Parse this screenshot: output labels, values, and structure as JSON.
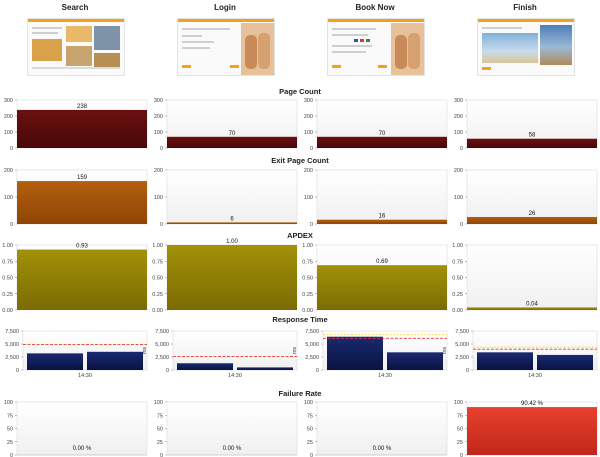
{
  "columns": [
    {
      "title": "Search"
    },
    {
      "title": "Login"
    },
    {
      "title": "Book Now"
    },
    {
      "title": "Finish"
    }
  ],
  "sections": [
    {
      "title": "Page Count"
    },
    {
      "title": "Exit Page Count"
    },
    {
      "title": "APDEX"
    },
    {
      "title": "Response Time"
    },
    {
      "title": "Failure Rate"
    }
  ],
  "colors": {
    "page_count": "#5a0d0d",
    "exit_page_count": "#a8560a",
    "apdex": "#8f7f06",
    "response_time": "#101b5a",
    "failure_rate": "#d63222",
    "threshold_red": "#e03a2a",
    "threshold_yellow": "#e8df40"
  },
  "chart_data": [
    {
      "type": "bar",
      "title": "Page Count",
      "categories": [
        "Search",
        "Login",
        "Book Now",
        "Finish"
      ],
      "values": [
        238,
        70,
        70,
        58
      ],
      "data_labels": [
        "238",
        "70",
        "70",
        "58"
      ],
      "ylim": [
        0,
        300
      ],
      "yticks": [
        "0",
        "100",
        "200",
        "300"
      ]
    },
    {
      "type": "bar",
      "title": "Exit Page Count",
      "categories": [
        "Search",
        "Login",
        "Book Now",
        "Finish"
      ],
      "values": [
        159,
        6,
        16,
        26
      ],
      "data_labels": [
        "159",
        "6",
        "16",
        "26"
      ],
      "ylim": [
        0,
        200
      ],
      "yticks": [
        "0",
        "100",
        "200"
      ]
    },
    {
      "type": "bar",
      "title": "APDEX",
      "categories": [
        "Search",
        "Login",
        "Book Now",
        "Finish"
      ],
      "values": [
        0.93,
        1.0,
        0.69,
        0.04
      ],
      "data_labels": [
        "0.93",
        "1.00",
        "0.69",
        "0.04"
      ],
      "ylim": [
        0,
        1.0
      ],
      "yticks": [
        "0.00",
        "0.25",
        "0.50",
        "0.75",
        "1.00"
      ]
    },
    {
      "type": "bar",
      "title": "Response Time",
      "ylabel": "ms",
      "xtick": "14:30",
      "ylim": [
        0,
        7500
      ],
      "yticks": [
        "0",
        "2,500",
        "5,000",
        "7,500"
      ],
      "panels": [
        {
          "category": "Search",
          "values": [
            3200,
            3500
          ],
          "red_threshold": 4900,
          "yellow_threshold": null
        },
        {
          "category": "Login",
          "values": [
            1300,
            500
          ],
          "red_threshold": 2600,
          "yellow_threshold": null
        },
        {
          "category": "Book Now",
          "values": [
            6400,
            3400
          ],
          "red_threshold": 6100,
          "yellow_threshold": 6800
        },
        {
          "category": "Finish",
          "values": [
            3400,
            2900
          ],
          "red_threshold": 4000,
          "yellow_threshold": 4400
        }
      ]
    },
    {
      "type": "bar",
      "title": "Failure Rate",
      "categories": [
        "Search",
        "Login",
        "Book Now",
        "Finish"
      ],
      "values": [
        0.0,
        0.0,
        0.0,
        90.42
      ],
      "data_labels": [
        "0.00 %",
        "0.00 %",
        "0.00 %",
        "90.42 %"
      ],
      "ylim": [
        0,
        100
      ],
      "yticks": [
        "0",
        "25",
        "50",
        "75",
        "100"
      ]
    }
  ]
}
